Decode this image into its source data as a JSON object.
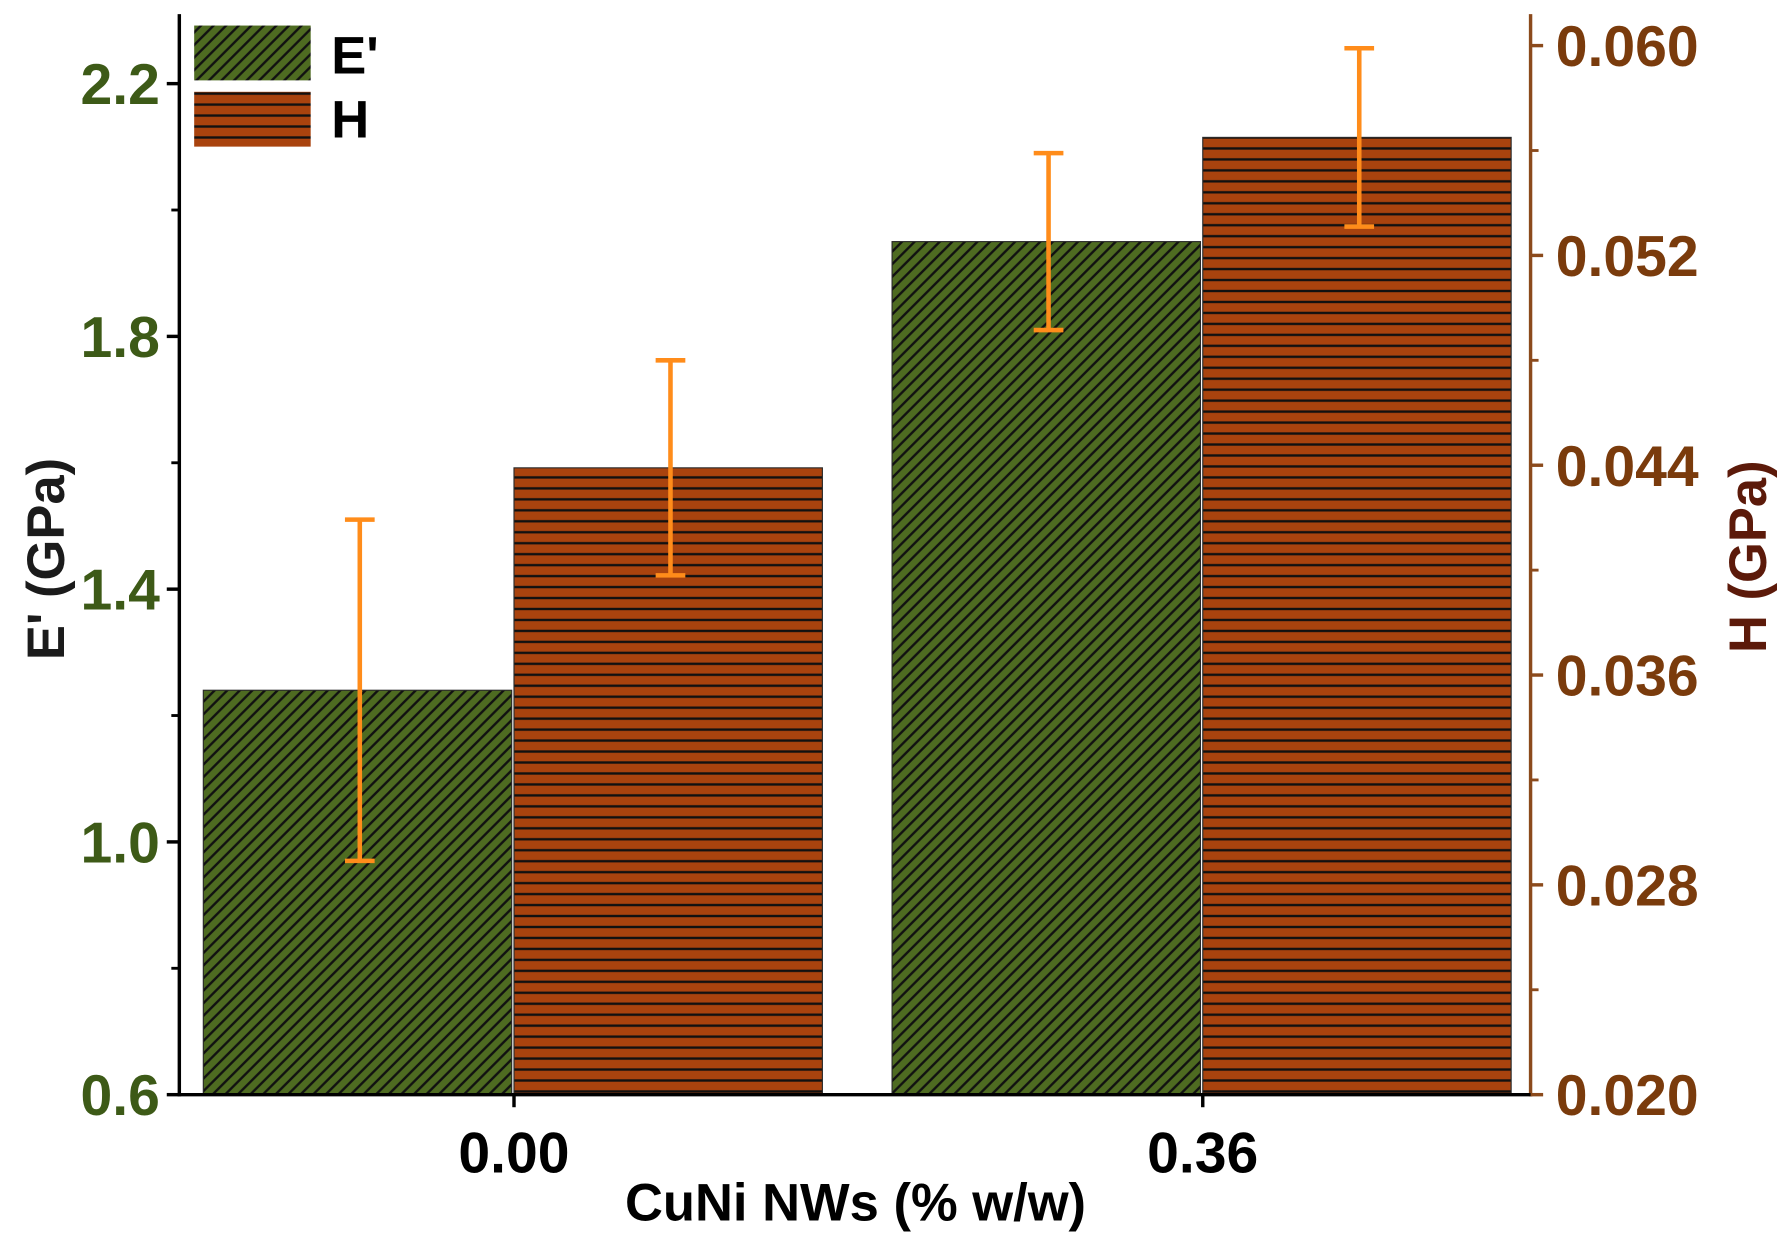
{
  "chart_data": {
    "type": "bar",
    "categories": [
      "0.00",
      "0.36"
    ],
    "xlabel": "CuNi NWs (% w/w)",
    "series": [
      {
        "name": "E'",
        "values": [
          1.24,
          1.95
        ],
        "errors": [
          0.27,
          0.14
        ],
        "color": "#4e6b21"
      },
      {
        "name": "H",
        "values": [
          0.0439,
          0.0565
        ],
        "errors": [
          0.0041,
          0.0034
        ],
        "color": "#a9430e"
      }
    ],
    "y_left": {
      "label": "E' (GPa)",
      "lim": [
        0.6,
        2.31
      ],
      "ticks": [
        "0.6",
        "1.0",
        "1.4",
        "1.8",
        "2.2"
      ],
      "tick_color": "#3d5a17",
      "label_color": "#1b1b1b",
      "axis_color": "#000000"
    },
    "y_right": {
      "label": "H (GPa)",
      "lim": [
        0.02,
        0.0612
      ],
      "ticks": [
        "0.020",
        "0.028",
        "0.036",
        "0.044",
        "0.052",
        "0.060"
      ],
      "tick_color": "#7a3b0c",
      "label_color": "#5c1a0a",
      "axis_color": "#8b4a1c"
    },
    "error_bar_color": "#ff8c1a",
    "legend": {
      "placement": "top-left"
    },
    "grid": false
  }
}
